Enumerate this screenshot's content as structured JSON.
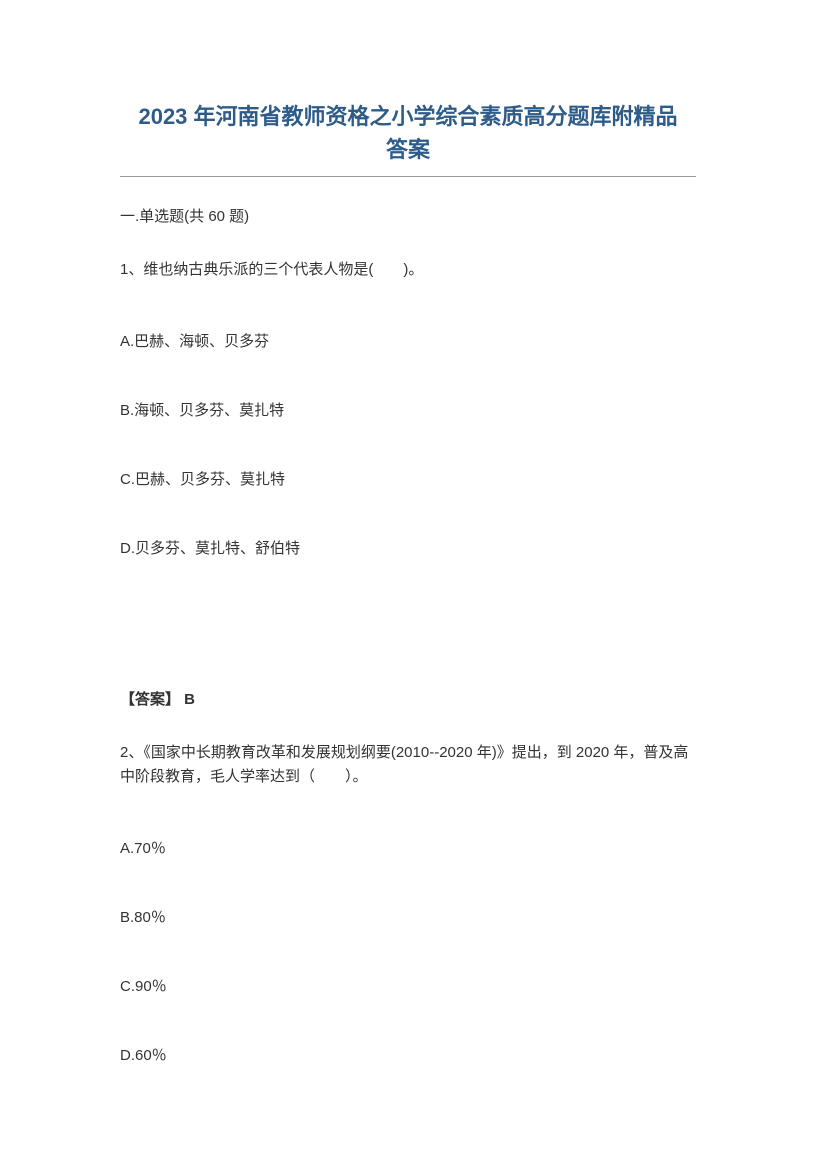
{
  "title": "2023 年河南省教师资格之小学综合素质高分题库附精品答案",
  "section_header": "一.单选题(共 60 题)",
  "question1": {
    "text": "1、维也纳古典乐派的三个代表人物是(　　)。",
    "options": {
      "a": "A.巴赫、海顿、贝多芬",
      "b": "B.海顿、贝多芬、莫扎特",
      "c": "C.巴赫、贝多芬、莫扎特",
      "d": "D.贝多芬、莫扎特、舒伯特"
    },
    "answer": "【答案】 B"
  },
  "question2": {
    "text": "2、《国家中长期教育改革和发展规划纲要(2010--2020 年)》提出，到 2020 年，普及高中阶段教育，毛人学率达到（　　）。",
    "options": {
      "a": "A.70％",
      "b": "B.80％",
      "c": "C.90％",
      "d": "D.60％"
    }
  },
  "colors": {
    "title_color": "#2e5c8a",
    "text_color": "#333333",
    "underline_color": "#999999",
    "background_color": "#ffffff"
  },
  "typography": {
    "title_fontsize": 22,
    "body_fontsize": 15,
    "title_weight": "bold"
  }
}
